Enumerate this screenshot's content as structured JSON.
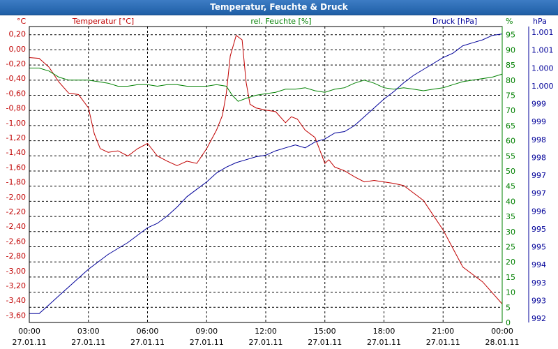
{
  "window": {
    "title": "Temperatur, Feuchte & Druck"
  },
  "colors": {
    "temperature": "#c00000",
    "humidity": "#008000",
    "pressure": "#000099",
    "grid": "#000000",
    "title_bar": "#2a68b0"
  },
  "chart_data": {
    "type": "line",
    "title": "Temperatur, Feuchte & Druck",
    "grid": true,
    "x_ticks": [
      {
        "time": "00:00",
        "date": "27.01.11"
      },
      {
        "time": "03:00",
        "date": "27.01.11"
      },
      {
        "time": "06:00",
        "date": "27.01.11"
      },
      {
        "time": "09:00",
        "date": "27.01.11"
      },
      {
        "time": "12:00",
        "date": "27.01.11"
      },
      {
        "time": "15:00",
        "date": "27.01.11"
      },
      {
        "time": "18:00",
        "date": "27.01.11"
      },
      {
        "time": "21:00",
        "date": "27.01.11"
      },
      {
        "time": "00:00",
        "date": "28.01.11"
      }
    ],
    "x_range_hours": [
      0,
      24
    ],
    "axes": {
      "temperature": {
        "unit": "°C",
        "ylim": [
          -3.7,
          0.3
        ],
        "ticks": [
          "0,20",
          "0,00",
          "-0,20",
          "-0,40",
          "-0,60",
          "-0,80",
          "-1,00",
          "-1,20",
          "-1,40",
          "-1,60",
          "-1,80",
          "-2,00",
          "-2,20",
          "-2,40",
          "-2,60",
          "-2,80",
          "-3,00",
          "-3,20",
          "-3,40",
          "-3,60"
        ]
      },
      "humidity": {
        "unit": "%",
        "ylim": [
          0,
          97.7
        ],
        "ticks": [
          "0",
          "5",
          "10",
          "15",
          "20",
          "25",
          "30",
          "35",
          "40",
          "45",
          "50",
          "55",
          "60",
          "65",
          "70",
          "75",
          "80",
          "85",
          "90",
          "95"
        ]
      },
      "pressure": {
        "unit": "hPa",
        "ylim": [
          991.6,
          1001.6
        ],
        "ticks": [
          "992",
          "993",
          "993",
          "994",
          "995",
          "995",
          "996",
          "997",
          "997",
          "998",
          "998",
          "999",
          "999",
          "1.000",
          "1.000",
          "1.001",
          "1.001"
        ]
      }
    },
    "series": [
      {
        "name": "Temperatur [°C]",
        "x": [
          0,
          0.5,
          1,
          1.5,
          2,
          2.5,
          3,
          3.3,
          3.6,
          4,
          4.5,
          5,
          5.5,
          6,
          6.5,
          7,
          7.5,
          8,
          8.5,
          9,
          9.5,
          9.8,
          10,
          10.2,
          10.5,
          10.8,
          11,
          11.2,
          11.5,
          12,
          12.5,
          13,
          13.3,
          13.6,
          14,
          14.5,
          15,
          15.2,
          15.5,
          16,
          16.5,
          17,
          17.5,
          18,
          18.5,
          19,
          19.5,
          20,
          20.5,
          21,
          21.5,
          22,
          22.5,
          23,
          23.5,
          24
        ],
        "values": [
          -0.12,
          -0.13,
          -0.25,
          -0.45,
          -0.6,
          -0.62,
          -0.8,
          -1.15,
          -1.35,
          -1.4,
          -1.38,
          -1.45,
          -1.35,
          -1.28,
          -1.45,
          -1.52,
          -1.58,
          -1.52,
          -1.55,
          -1.35,
          -1.1,
          -0.9,
          -0.6,
          -0.1,
          0.18,
          0.12,
          -0.45,
          -0.75,
          -0.8,
          -0.83,
          -0.85,
          -1.0,
          -0.92,
          -0.95,
          -1.1,
          -1.2,
          -1.55,
          -1.5,
          -1.6,
          -1.65,
          -1.73,
          -1.8,
          -1.78,
          -1.8,
          -1.82,
          -1.85,
          -1.95,
          -2.05,
          -2.25,
          -2.45,
          -2.7,
          -2.95,
          -3.05,
          -3.15,
          -3.3,
          -3.45
        ]
      },
      {
        "name": "rel. Feuchte [%]",
        "x": [
          0,
          0.5,
          1,
          1.5,
          2,
          2.5,
          3,
          3.5,
          4,
          4.5,
          5,
          5.5,
          6,
          6.5,
          7,
          7.5,
          8,
          8.5,
          9,
          9.5,
          10,
          10.3,
          10.6,
          11,
          11.5,
          12,
          12.5,
          13,
          13.5,
          14,
          14.5,
          15,
          15.5,
          16,
          16.5,
          17,
          17.5,
          18,
          18.5,
          19,
          19.5,
          20,
          20.5,
          21,
          21.5,
          22,
          22.5,
          23,
          23.5,
          24
        ],
        "values": [
          84,
          84,
          83,
          81,
          80,
          80,
          80,
          79.5,
          79,
          78,
          78,
          78.5,
          78.5,
          78,
          78.5,
          78.5,
          78,
          78,
          78,
          78.5,
          78,
          75,
          73,
          74,
          75,
          75.5,
          76,
          77,
          77,
          77.5,
          76.5,
          76,
          77,
          77.5,
          79,
          80,
          79,
          77.5,
          77,
          77.5,
          77,
          76.5,
          77,
          77.5,
          78.5,
          79.5,
          80,
          80.5,
          81,
          82
        ]
      },
      {
        "name": "Druck [hPa]",
        "x": [
          0,
          0.5,
          1,
          1.5,
          2,
          2.5,
          3,
          3.5,
          4,
          4.5,
          5,
          5.5,
          6,
          6.5,
          7,
          7.5,
          8,
          8.5,
          9,
          9.5,
          10,
          10.5,
          11,
          11.5,
          12,
          12.5,
          13,
          13.5,
          14,
          14.5,
          15,
          15.5,
          16,
          16.5,
          17,
          17.5,
          18,
          18.5,
          19,
          19.5,
          20,
          20.5,
          21,
          21.5,
          22,
          22.5,
          23,
          23.5,
          24
        ],
        "values": [
          991.9,
          991.9,
          992.2,
          992.5,
          992.8,
          993.1,
          993.4,
          993.65,
          993.9,
          994.1,
          994.3,
          994.55,
          994.8,
          994.95,
          995.2,
          995.5,
          995.85,
          996.1,
          996.35,
          996.65,
          996.85,
          997.0,
          997.1,
          997.2,
          997.25,
          997.4,
          997.5,
          997.6,
          997.5,
          997.7,
          997.8,
          998.0,
          998.05,
          998.25,
          998.55,
          998.85,
          999.15,
          999.4,
          999.7,
          999.95,
          1000.15,
          1000.35,
          1000.55,
          1000.7,
          1000.95,
          1001.05,
          1001.15,
          1001.3,
          1001.35
        ]
      }
    ]
  }
}
